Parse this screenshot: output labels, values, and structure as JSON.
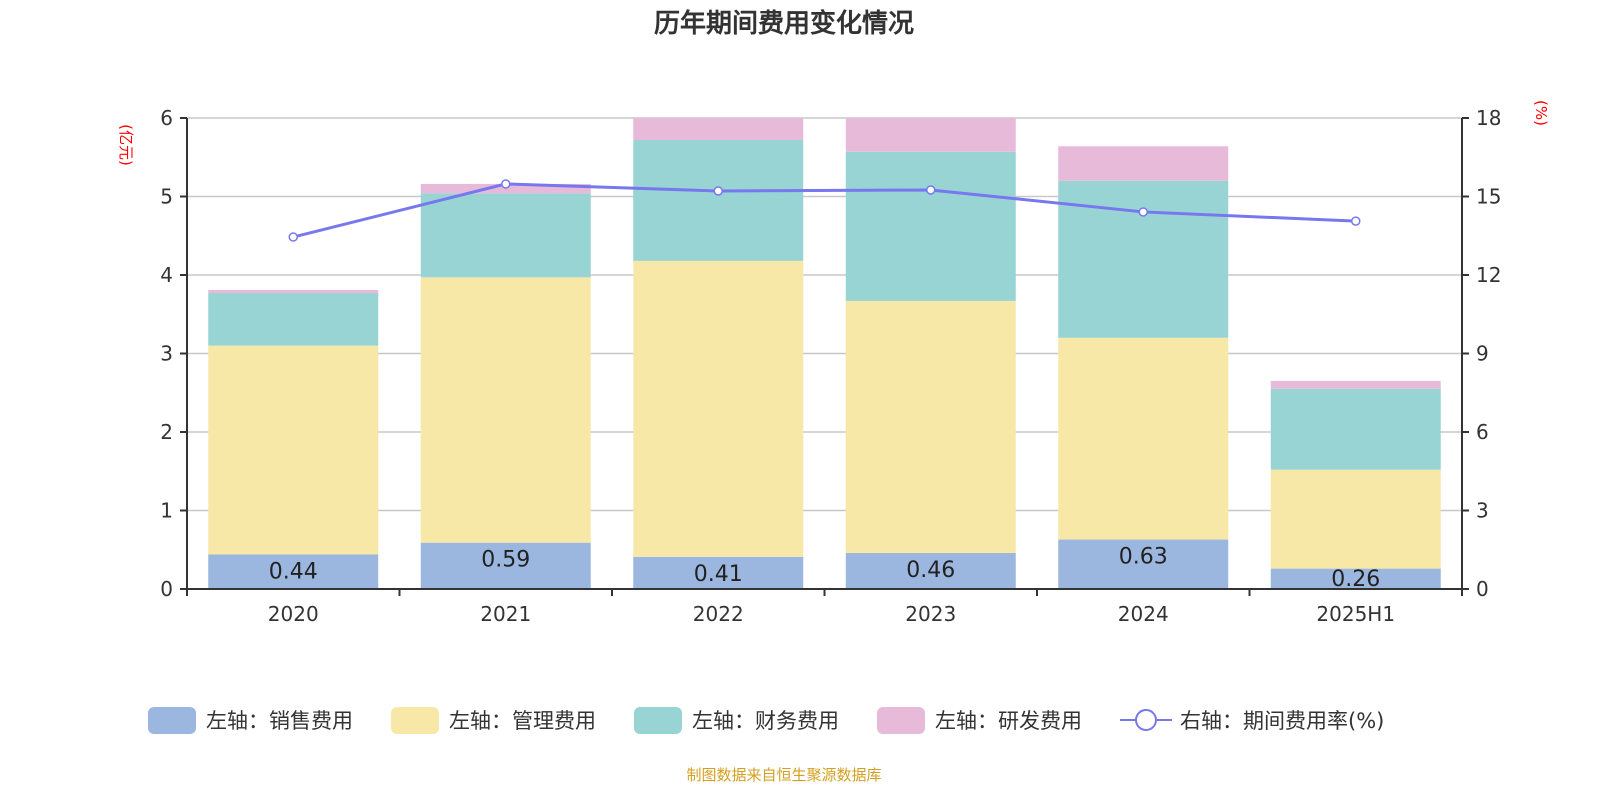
{
  "chart_data": {
    "type": "bar",
    "title": "历年期间费用变化情况",
    "source": "制图数据来自恒生聚源数据库",
    "categories": [
      "2020",
      "2021",
      "2022",
      "2023",
      "2024",
      "2025H1"
    ],
    "left_axis": {
      "unit": "(亿元)",
      "range": [
        0,
        6
      ],
      "ticks": [
        "0",
        "1",
        "2",
        "3",
        "4",
        "5",
        "6"
      ]
    },
    "right_axis": {
      "unit": "(%)",
      "range": [
        0,
        18
      ],
      "ticks": [
        "0",
        "3",
        "6",
        "9",
        "12",
        "15",
        "18"
      ]
    },
    "grid": true,
    "legend_position": "bottom",
    "series": [
      {
        "name": "左轴：销售费用",
        "type": "bar",
        "stack": true,
        "color": "#9bb7e0",
        "values": [
          0.44,
          0.59,
          0.41,
          0.46,
          0.63,
          0.26
        ],
        "labels": [
          "0.44",
          "0.59",
          "0.41",
          "0.46",
          "0.63",
          "0.26"
        ]
      },
      {
        "name": "左轴：管理费用",
        "type": "bar",
        "stack": true,
        "color": "#f8e8a8",
        "values": [
          2.66,
          3.38,
          3.77,
          3.21,
          2.57,
          1.26
        ]
      },
      {
        "name": "左轴：财务费用",
        "type": "bar",
        "stack": true,
        "color": "#98d4d4",
        "values": [
          0.67,
          1.07,
          1.54,
          1.9,
          2.0,
          1.03
        ]
      },
      {
        "name": "左轴：研发费用",
        "type": "bar",
        "stack": true,
        "color": "#e8bada",
        "values": [
          0.04,
          0.12,
          0.35,
          0.5,
          0.44,
          0.1
        ]
      },
      {
        "name": "右轴：期间费用率(%)",
        "type": "line",
        "axis": "right",
        "color": "#7777ee",
        "values": [
          13.45,
          15.48,
          15.21,
          15.25,
          14.41,
          14.06
        ]
      }
    ]
  }
}
